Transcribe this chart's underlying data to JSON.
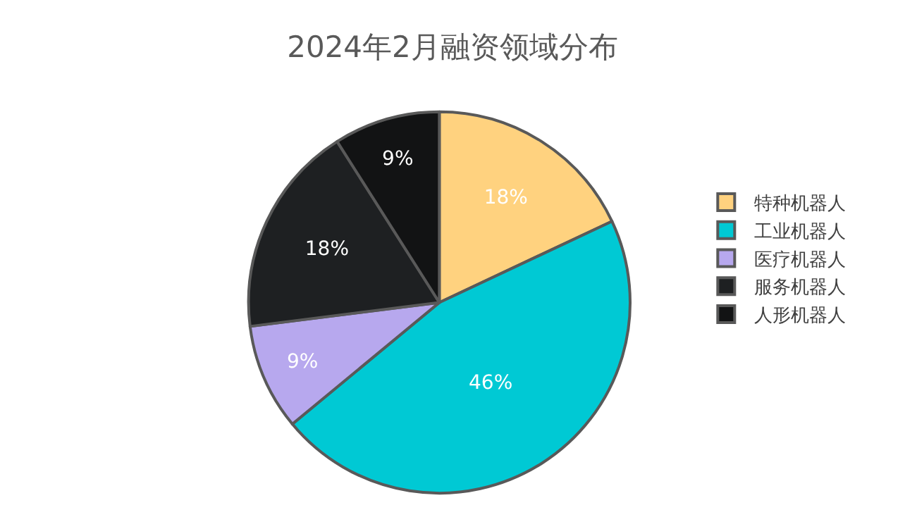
{
  "chart_data": {
    "type": "pie",
    "title": "2024年2月融资领域分布",
    "categories": [
      "特种机器人",
      "工业机器人",
      "医疗机器人",
      "服务机器人",
      "人形机器人"
    ],
    "values": [
      18,
      46,
      9,
      18,
      9
    ],
    "value_labels": [
      "18%",
      "46%",
      "9%",
      "18%",
      "9%"
    ],
    "colors": [
      "#ffd27f",
      "#00c9d4",
      "#b7a8ee",
      "#1e2022",
      "#121314"
    ],
    "legend": "right"
  }
}
